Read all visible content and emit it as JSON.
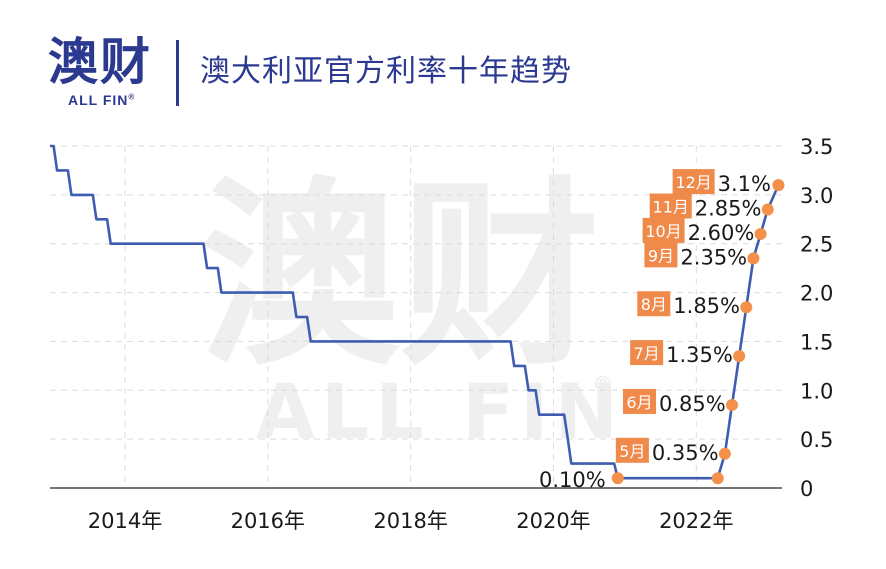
{
  "header": {
    "logo_cn": "澳财",
    "logo_en": "ALL FIN",
    "logo_reg": "®",
    "title": "澳大利亚官方利率十年趋势"
  },
  "watermark": {
    "cn": "澳财",
    "en": "ALL FIN",
    "reg": "®"
  },
  "colors": {
    "line": "#3f5cb0",
    "marker": "#f4904a",
    "label_bg": "#f08a4b",
    "grid": "#dcdcdc",
    "brand": "#2b3990"
  },
  "chart_data": {
    "type": "line",
    "title": "澳大利亚官方利率十年趋势",
    "xlabel": "",
    "ylabel": "",
    "x_ticks": [
      {
        "x": 2014.0,
        "label": "2014年"
      },
      {
        "x": 2016.0,
        "label": "2016年"
      },
      {
        "x": 2018.0,
        "label": "2018年"
      },
      {
        "x": 2020.0,
        "label": "2020年"
      },
      {
        "x": 2022.0,
        "label": "2022年"
      }
    ],
    "y_ticks": [
      {
        "y": 0,
        "label": "0"
      },
      {
        "y": 0.5,
        "label": "0.5"
      },
      {
        "y": 1.0,
        "label": "1.0"
      },
      {
        "y": 1.5,
        "label": "1.5"
      },
      {
        "y": 2.0,
        "label": "2.0"
      },
      {
        "y": 2.5,
        "label": "2.5"
      },
      {
        "y": 3.0,
        "label": "3.0"
      },
      {
        "y": 3.5,
        "label": "3.5"
      }
    ],
    "xlim": [
      2012.95,
      2023.2
    ],
    "ylim": [
      0,
      3.5
    ],
    "grid": true,
    "series": [
      {
        "points": [
          [
            2012.95,
            3.5
          ],
          [
            2013.0,
            3.5
          ],
          [
            2013.05,
            3.25
          ],
          [
            2013.2,
            3.25
          ],
          [
            2013.25,
            3.0
          ],
          [
            2013.55,
            3.0
          ],
          [
            2013.6,
            2.75
          ],
          [
            2013.75,
            2.75
          ],
          [
            2013.8,
            2.5
          ],
          [
            2015.1,
            2.5
          ],
          [
            2015.15,
            2.25
          ],
          [
            2015.3,
            2.25
          ],
          [
            2015.35,
            2.0
          ],
          [
            2016.35,
            2.0
          ],
          [
            2016.4,
            1.75
          ],
          [
            2016.55,
            1.75
          ],
          [
            2016.6,
            1.5
          ],
          [
            2019.4,
            1.5
          ],
          [
            2019.45,
            1.25
          ],
          [
            2019.6,
            1.25
          ],
          [
            2019.65,
            1.0
          ],
          [
            2019.75,
            1.0
          ],
          [
            2019.8,
            0.75
          ],
          [
            2020.15,
            0.75
          ],
          [
            2020.2,
            0.5
          ],
          [
            2020.25,
            0.25
          ],
          [
            2020.85,
            0.25
          ],
          [
            2020.9,
            0.1
          ],
          [
            2022.3,
            0.1
          ],
          [
            2022.4,
            0.35
          ],
          [
            2022.5,
            0.85
          ],
          [
            2022.6,
            1.35
          ],
          [
            2022.7,
            1.85
          ],
          [
            2022.8,
            2.35
          ],
          [
            2022.9,
            2.6
          ],
          [
            2023.0,
            2.85
          ],
          [
            2023.15,
            3.1
          ]
        ]
      }
    ],
    "markers": [
      {
        "x": 2020.9,
        "y": 0.1,
        "pct": "0.10%",
        "month": ""
      },
      {
        "x": 2022.3,
        "y": 0.1,
        "pct": "",
        "month": ""
      },
      {
        "x": 2022.4,
        "y": 0.35,
        "pct": "0.35%",
        "month": "5月"
      },
      {
        "x": 2022.5,
        "y": 0.85,
        "pct": "0.85%",
        "month": "6月"
      },
      {
        "x": 2022.6,
        "y": 1.35,
        "pct": "1.35%",
        "month": "7月"
      },
      {
        "x": 2022.7,
        "y": 1.85,
        "pct": "1.85%",
        "month": "8月"
      },
      {
        "x": 2022.8,
        "y": 2.35,
        "pct": "2.35%",
        "month": "9月"
      },
      {
        "x": 2022.9,
        "y": 2.6,
        "pct": "2.60%",
        "month": "10月"
      },
      {
        "x": 2023.0,
        "y": 2.85,
        "pct": "2.85%",
        "month": "11月"
      },
      {
        "x": 2023.15,
        "y": 3.1,
        "pct": "3.1%",
        "month": "12月"
      }
    ]
  }
}
